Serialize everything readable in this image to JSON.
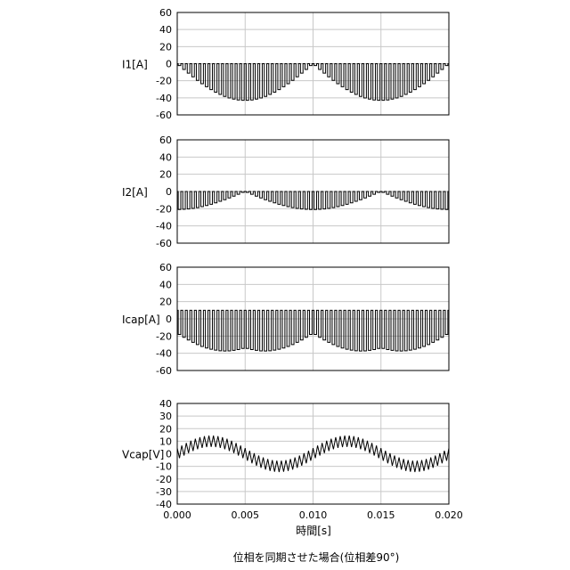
{
  "chart_data": [
    {
      "type": "line",
      "ylabel": "I1[A]",
      "ylim": [
        -60,
        60
      ],
      "yticks": [
        60,
        40,
        20,
        0,
        -20,
        -40,
        -60
      ],
      "xlim": [
        0,
        0.02
      ],
      "grid": true,
      "waveform": "pulse train, 60 pulses per 0.02 s, top at 0 A, bottom follows -43·|sin(2π·50·t)| A"
    },
    {
      "type": "line",
      "ylabel": "I2[A]",
      "ylim": [
        -60,
        60
      ],
      "yticks": [
        60,
        40,
        20,
        0,
        -20,
        -40,
        -60
      ],
      "xlim": [
        0,
        0.02
      ],
      "grid": true,
      "waveform": "pulse train, 60 pulses per 0.02 s, top at 0 A, bottom about -20 A near 0 s and 0.01 s, near 0 A at 0.005 s and 0.015 s"
    },
    {
      "type": "line",
      "ylabel": "Icap[A]",
      "ylim": [
        -60,
        60
      ],
      "yticks": [
        60,
        40,
        20,
        0,
        -20,
        -40,
        -60
      ],
      "xlim": [
        0,
        0.02
      ],
      "grid": true,
      "waveform": "pulse train, 60 pulses per 0.02 s, top at about +10 A, bottom follows I1 plus I2 between about -20 A and -36 A"
    },
    {
      "type": "line",
      "ylabel": "Vcap[V]",
      "ylim": [
        -40,
        40
      ],
      "yticks": [
        40,
        30,
        20,
        10,
        0,
        -10,
        -20,
        -30,
        -40
      ],
      "xlim": [
        0,
        0.02
      ],
      "xticks": [
        "0.000",
        "0.005",
        "0.010",
        "0.015",
        "0.020"
      ],
      "xlabel": "時間[s]",
      "grid": true,
      "waveform": "sinusoid of about ±10 V at 100 Hz with sawtooth ripple of about ±5 V, 60 teeth per 0.02 s"
    }
  ],
  "caption": "位相を同期させた場合(位相差90°)"
}
